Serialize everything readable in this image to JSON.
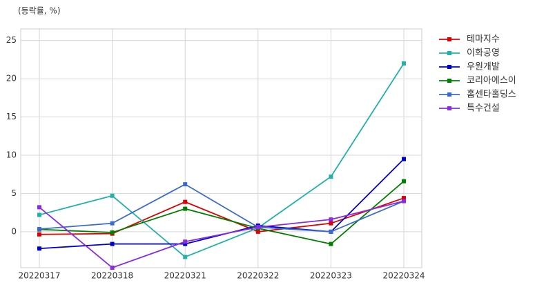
{
  "chart_data": {
    "type": "line",
    "title": "(등락률, %)",
    "categories": [
      "20220317",
      "20220318",
      "20220321",
      "20220322",
      "20220323",
      "20220324"
    ],
    "series": [
      {
        "name": "테마지수",
        "color": "#dd0000",
        "values": [
          -0.35,
          -0.25,
          3.9,
          0.0,
          1.1,
          4.4
        ]
      },
      {
        "name": "이화공영",
        "color": "#20b2aa",
        "values": [
          2.2,
          4.7,
          -3.3,
          0.5,
          7.2,
          22.0
        ]
      },
      {
        "name": "우원개발",
        "color": "#0000cd",
        "values": [
          -2.2,
          -1.6,
          -1.6,
          0.8,
          0.0,
          9.5
        ]
      },
      {
        "name": "코리아에스이",
        "color": "#007f00",
        "values": [
          0.3,
          -0.1,
          3.0,
          0.45,
          -1.6,
          6.6
        ]
      },
      {
        "name": "홈센타홀딩스",
        "color": "#3a6bd0",
        "values": [
          0.35,
          1.1,
          6.2,
          0.6,
          0.0,
          4.0
        ]
      },
      {
        "name": "특수건설",
        "color": "#8a2be2",
        "values": [
          3.2,
          -4.7,
          -1.3,
          0.6,
          1.6,
          4.0
        ]
      }
    ],
    "ylim": [
      -4.7,
      26.5
    ],
    "yticks": [
      0,
      5,
      10,
      15,
      20,
      25
    ],
    "grid": true,
    "legend": "outside-right"
  }
}
